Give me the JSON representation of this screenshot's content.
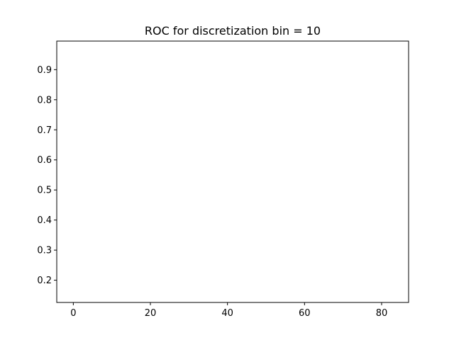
{
  "chart_data": {
    "type": "line",
    "title": "ROC for discretization bin = 10",
    "xlabel": "",
    "ylabel": "",
    "xlim": [
      -4.3,
      87
    ],
    "ylim": [
      0.126,
      0.995
    ],
    "x_ticks": [
      0,
      20,
      40,
      60,
      80
    ],
    "y_ticks": [
      0.2,
      0.3,
      0.4,
      0.5,
      0.6,
      0.7,
      0.8,
      0.9
    ],
    "series": [],
    "grid": false,
    "legend": "none"
  }
}
